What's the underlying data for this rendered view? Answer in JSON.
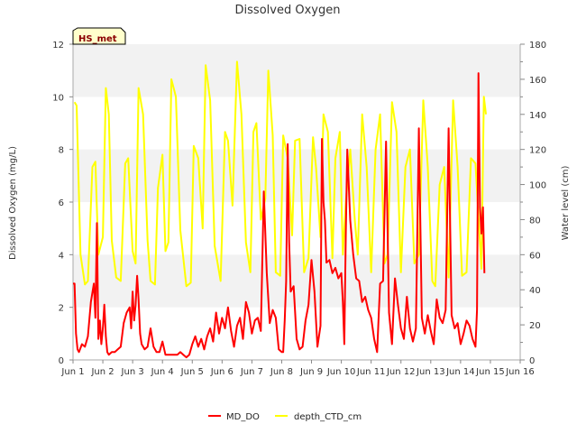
{
  "chart_data": {
    "type": "line",
    "title": "Dissolved Oxygen",
    "badge": "HS_met",
    "xlabel": "",
    "ylabel": "Dissolved Oxygen (mg/L)",
    "y2label": "Water level (cm)",
    "x_tick_labels": [
      "Jun 1",
      "Jun 2",
      "Jun 3",
      "Jun 4",
      "Jun 5",
      "Jun 6",
      "Jun 7",
      "Jun 8",
      "Jun 9",
      "Jun 10",
      "Jun 11",
      "Jun 12",
      "Jun 13",
      "Jun 14",
      "Jun 15",
      "Jun 16"
    ],
    "xlim": [
      1,
      16
    ],
    "ylim": [
      0,
      12
    ],
    "y2lim": [
      0,
      180
    ],
    "y_ticks": [
      0,
      2,
      4,
      6,
      8,
      10,
      12
    ],
    "y2_ticks": [
      0,
      20,
      40,
      60,
      80,
      100,
      120,
      140,
      160,
      180
    ],
    "bands": true,
    "legend_position": "bottom-center",
    "series": [
      {
        "name": "MD_DO",
        "color": "#ff0000",
        "axis": "left",
        "x": [
          1.0,
          1.05,
          1.1,
          1.15,
          1.2,
          1.3,
          1.4,
          1.5,
          1.6,
          1.7,
          1.75,
          1.8,
          1.85,
          1.9,
          1.95,
          2.0,
          2.05,
          2.1,
          2.15,
          2.2,
          2.3,
          2.4,
          2.5,
          2.6,
          2.7,
          2.8,
          2.9,
          2.95,
          3.0,
          3.05,
          3.1,
          3.15,
          3.2,
          3.25,
          3.3,
          3.4,
          3.5,
          3.6,
          3.7,
          3.8,
          3.9,
          4.0,
          4.1,
          4.2,
          4.3,
          4.4,
          4.5,
          4.6,
          4.7,
          4.8,
          4.9,
          5.0,
          5.1,
          5.2,
          5.3,
          5.4,
          5.5,
          5.6,
          5.7,
          5.8,
          5.9,
          6.0,
          6.1,
          6.2,
          6.3,
          6.4,
          6.5,
          6.6,
          6.7,
          6.8,
          6.9,
          7.0,
          7.1,
          7.2,
          7.3,
          7.4,
          7.5,
          7.6,
          7.7,
          7.8,
          7.9,
          8.0,
          8.05,
          8.1,
          8.15,
          8.2,
          8.25,
          8.3,
          8.4,
          8.5,
          8.6,
          8.7,
          8.8,
          8.9,
          9.0,
          9.1,
          9.2,
          9.3,
          9.35,
          9.4,
          9.45,
          9.5,
          9.6,
          9.7,
          9.8,
          9.9,
          10.0,
          10.05,
          10.1,
          10.15,
          10.2,
          10.3,
          10.4,
          10.5,
          10.6,
          10.7,
          10.8,
          10.9,
          11.0,
          11.1,
          11.2,
          11.3,
          11.4,
          11.5,
          11.6,
          11.7,
          11.8,
          11.9,
          12.0,
          12.1,
          12.2,
          12.3,
          12.4,
          12.5,
          12.6,
          12.7,
          12.8,
          12.9,
          13.0,
          13.1,
          13.2,
          13.3,
          13.4,
          13.5,
          13.6,
          13.7,
          13.8,
          13.9,
          14.0,
          14.1,
          14.2,
          14.3,
          14.4,
          14.5,
          14.55,
          14.6,
          14.65,
          14.7,
          14.75,
          14.8
        ],
        "values": [
          2.9,
          2.9,
          1.0,
          0.4,
          0.3,
          0.6,
          0.5,
          0.9,
          2.2,
          2.9,
          1.6,
          5.2,
          0.8,
          1.5,
          0.6,
          1.2,
          2.1,
          0.9,
          0.3,
          0.2,
          0.3,
          0.3,
          0.4,
          0.5,
          1.4,
          1.8,
          2.0,
          1.2,
          2.6,
          1.5,
          2.1,
          3.2,
          2.3,
          1.0,
          0.6,
          0.4,
          0.5,
          1.2,
          0.5,
          0.3,
          0.3,
          0.7,
          0.2,
          0.2,
          0.2,
          0.2,
          0.2,
          0.3,
          0.2,
          0.1,
          0.2,
          0.6,
          0.9,
          0.5,
          0.8,
          0.4,
          0.9,
          1.2,
          0.7,
          1.8,
          1.0,
          1.6,
          1.2,
          2.0,
          1.1,
          0.5,
          1.3,
          1.6,
          0.8,
          2.2,
          1.8,
          1.0,
          1.5,
          1.6,
          1.1,
          6.4,
          3.3,
          1.4,
          1.9,
          1.6,
          0.4,
          0.3,
          0.3,
          1.5,
          3.0,
          8.2,
          4.5,
          2.6,
          2.8,
          0.8,
          0.4,
          0.5,
          1.5,
          2.1,
          3.8,
          2.6,
          0.5,
          1.3,
          8.4,
          6.0,
          5.3,
          3.7,
          3.8,
          3.3,
          3.5,
          3.1,
          3.3,
          2.2,
          0.6,
          4.9,
          8.0,
          5.3,
          4.0,
          3.1,
          3.0,
          2.2,
          2.4,
          1.9,
          1.6,
          0.8,
          0.3,
          2.9,
          3.0,
          8.3,
          1.8,
          0.6,
          3.1,
          2.1,
          1.2,
          0.8,
          2.4,
          1.2,
          0.7,
          1.2,
          8.8,
          1.6,
          1.0,
          1.7,
          1.1,
          0.6,
          2.3,
          1.6,
          1.4,
          1.9,
          8.8,
          1.7,
          1.2,
          1.4,
          0.6,
          1.0,
          1.5,
          1.3,
          0.8,
          0.5,
          1.9,
          10.9,
          5.8,
          4.8,
          5.8,
          3.3
        ]
      },
      {
        "name": "depth_CTD_cm",
        "color": "#ffff00",
        "axis": "right",
        "x": [
          1.05,
          1.12,
          1.25,
          1.4,
          1.5,
          1.65,
          1.75,
          1.85,
          2.0,
          2.1,
          2.2,
          2.3,
          2.45,
          2.6,
          2.75,
          2.85,
          3.0,
          3.1,
          3.2,
          3.35,
          3.5,
          3.6,
          3.75,
          3.85,
          4.0,
          4.1,
          4.2,
          4.3,
          4.45,
          4.6,
          4.8,
          4.95,
          5.05,
          5.2,
          5.35,
          5.45,
          5.6,
          5.75,
          5.95,
          6.1,
          6.2,
          6.35,
          6.5,
          6.65,
          6.8,
          6.95,
          7.05,
          7.15,
          7.3,
          7.45,
          7.55,
          7.7,
          7.8,
          7.95,
          8.05,
          8.2,
          8.35,
          8.45,
          8.6,
          8.75,
          8.9,
          9.05,
          9.15,
          9.3,
          9.4,
          9.55,
          9.7,
          9.8,
          9.95,
          10.05,
          10.15,
          10.3,
          10.45,
          10.55,
          10.7,
          10.85,
          11.0,
          11.15,
          11.3,
          11.45,
          11.55,
          11.7,
          11.85,
          12.0,
          12.15,
          12.3,
          12.45,
          12.6,
          12.75,
          12.9,
          13.05,
          13.15,
          13.3,
          13.45,
          13.6,
          13.75,
          13.9,
          14.05,
          14.2,
          14.35,
          14.5,
          14.6,
          14.7,
          14.78,
          14.85
        ],
        "values": [
          147,
          145,
          60,
          43,
          45,
          110,
          113,
          60,
          70,
          155,
          140,
          68,
          47,
          45,
          112,
          115,
          62,
          55,
          155,
          140,
          68,
          45,
          43,
          98,
          117,
          62,
          67,
          160,
          150,
          74,
          42,
          44,
          122,
          115,
          75,
          168,
          148,
          65,
          45,
          130,
          125,
          88,
          170,
          140,
          67,
          50,
          130,
          135,
          80,
          92,
          165,
          128,
          50,
          48,
          128,
          115,
          71,
          125,
          126,
          50,
          58,
          127,
          110,
          70,
          140,
          130,
          58,
          115,
          130,
          60,
          90,
          120,
          80,
          60,
          140,
          110,
          50,
          120,
          140,
          55,
          60,
          147,
          130,
          50,
          110,
          120,
          55,
          60,
          148,
          110,
          45,
          42,
          100,
          110,
          47,
          148,
          110,
          48,
          50,
          115,
          112,
          82,
          52,
          150,
          140
        ]
      }
    ]
  }
}
